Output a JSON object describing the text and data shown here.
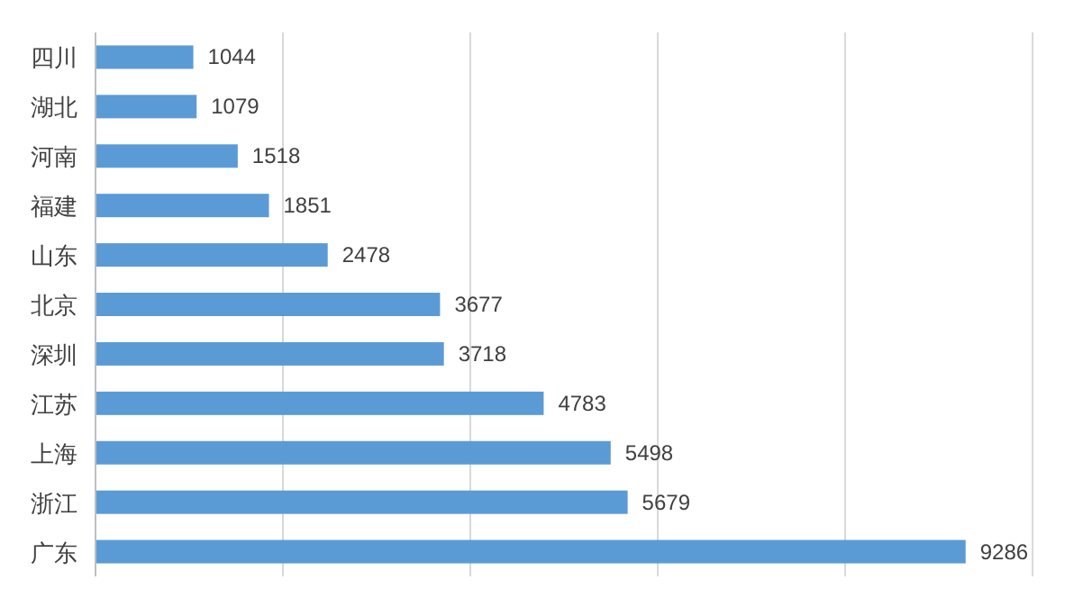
{
  "chart_data": {
    "type": "bar",
    "orientation": "horizontal",
    "categories": [
      "四川",
      "湖北",
      "河南",
      "福建",
      "山东",
      "北京",
      "深圳",
      "江苏",
      "上海",
      "浙江",
      "广东"
    ],
    "values": [
      1044,
      1079,
      1518,
      1851,
      2478,
      3677,
      3718,
      4783,
      5498,
      5679,
      9286
    ],
    "color": "#5b9bd5",
    "data_labels": true,
    "grid": "x",
    "tick_labels": "y",
    "xlim": [
      0,
      10000
    ],
    "xticks": [
      {
        "value": 0,
        "label": null
      },
      {
        "value": 2000,
        "label": null
      },
      {
        "value": 4000,
        "label": null
      },
      {
        "value": 6000,
        "label": null
      },
      {
        "value": 8000,
        "label": null
      },
      {
        "value": 10000,
        "label": null
      }
    ]
  }
}
